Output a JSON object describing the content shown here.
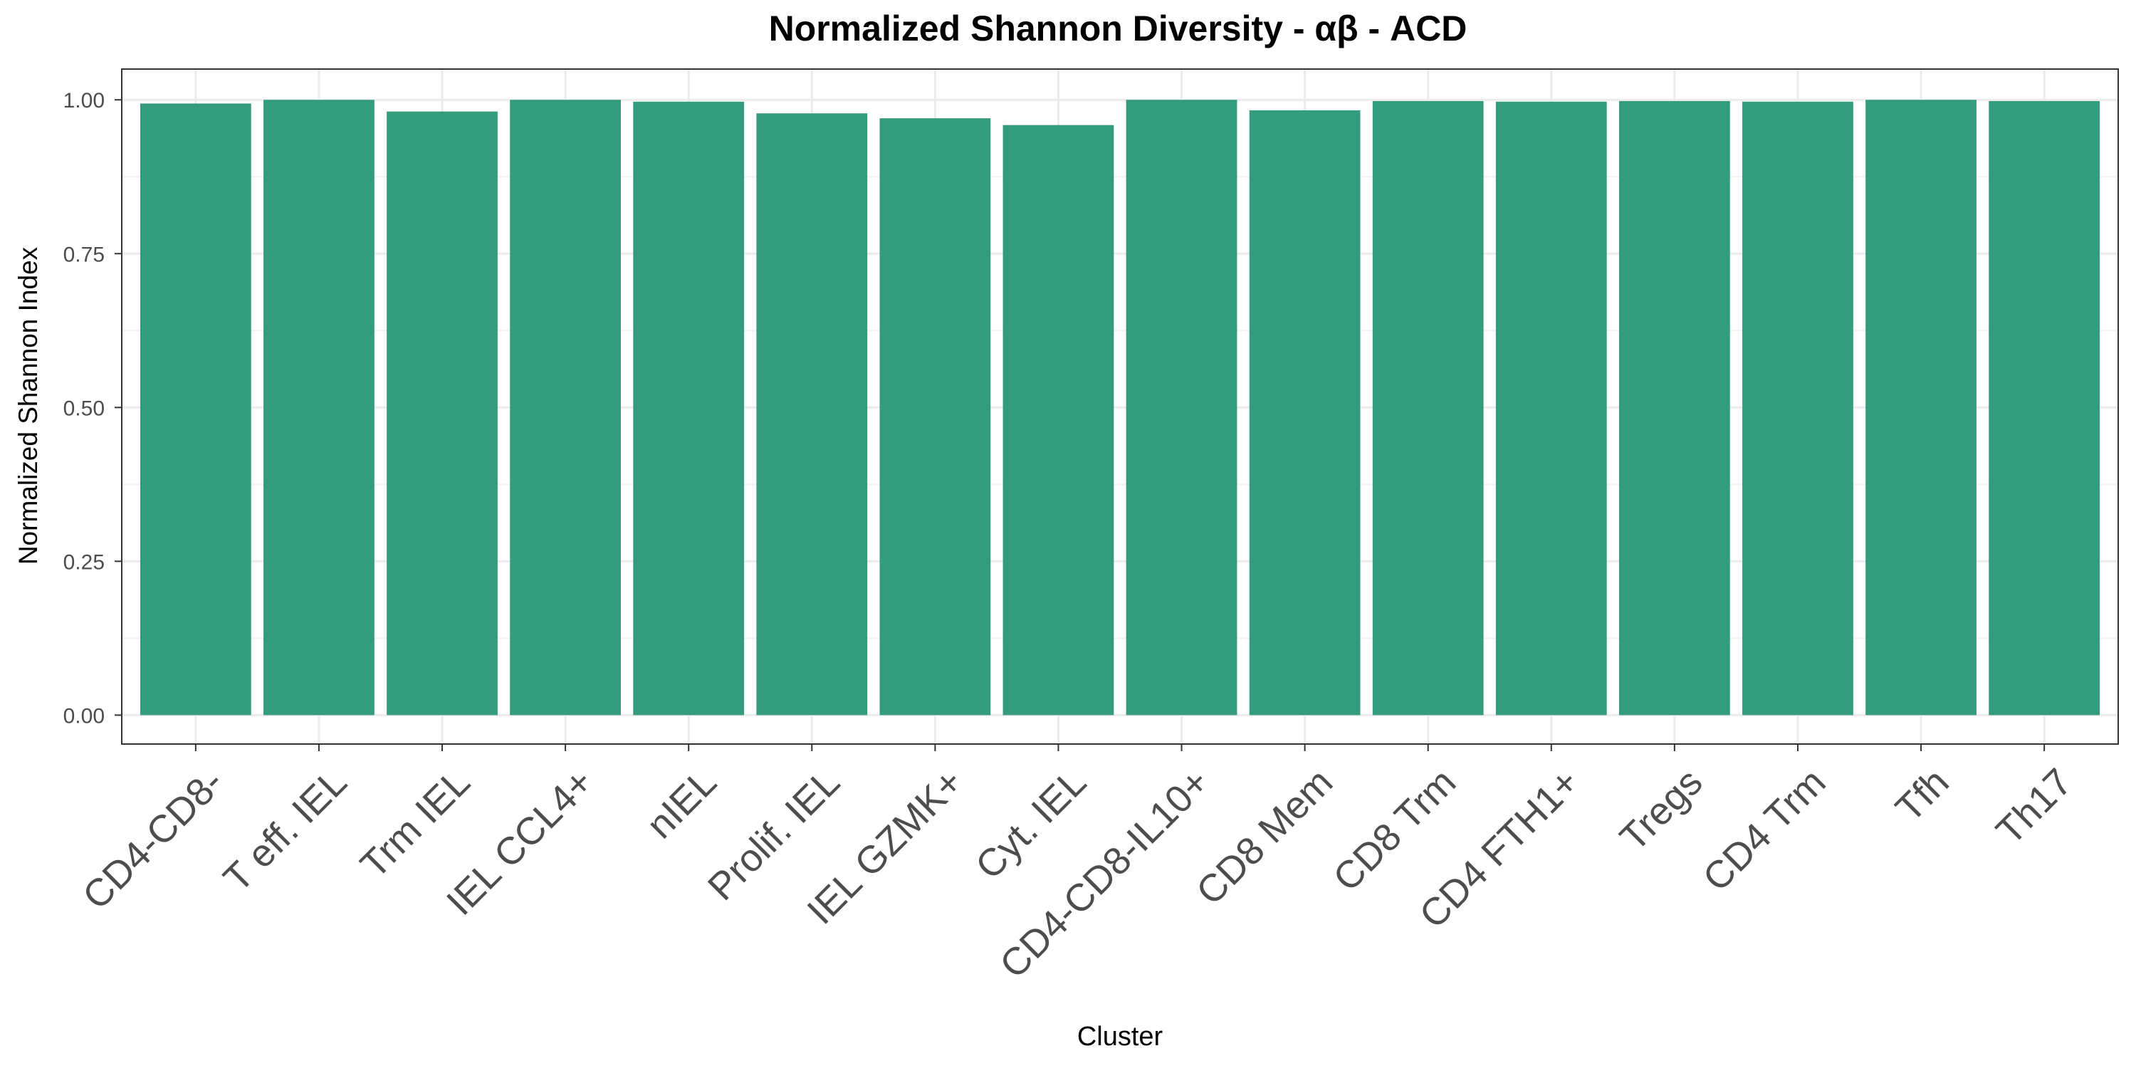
{
  "chart_data": {
    "type": "bar",
    "title": "Normalized Shannon Diversity - αβ - ACD",
    "xlabel": "Cluster",
    "ylabel": "Normalized Shannon Index",
    "categories": [
      "CD4-CD8-",
      "T eff. IEL",
      "Trm IEL",
      "IEL CCL4+",
      "nIEL",
      "Prolif. IEL",
      "IEL GZMK+",
      "Cyt. IEL",
      "CD4-CD8-IL10+",
      "CD8 Mem",
      "CD8 Trm",
      "CD4 FTH1+",
      "Tregs",
      "CD4 Trm",
      "Tfh",
      "Th17"
    ],
    "values": [
      0.994,
      1.0,
      0.981,
      1.0,
      0.997,
      0.978,
      0.97,
      0.959,
      1.0,
      0.983,
      0.998,
      0.997,
      0.998,
      0.997,
      1.0,
      0.998
    ],
    "ylim": [
      -0.047,
      1.05
    ],
    "yticks": [
      0.0,
      0.25,
      0.5,
      0.75,
      1.0
    ],
    "ytick_labels": [
      "0.00",
      "0.25",
      "0.50",
      "0.75",
      "1.00"
    ],
    "grid": true,
    "legend": "none",
    "bar_color": "#359B7D"
  }
}
